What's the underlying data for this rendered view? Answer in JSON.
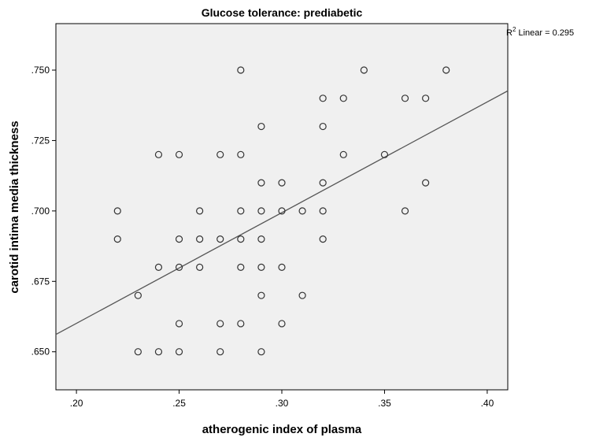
{
  "chart_data": {
    "type": "scatter",
    "title": "Glucose tolerance: prediabetic",
    "xlabel": "atherogenic index of plasma",
    "ylabel": "carotid intima media thickness",
    "xlim": [
      0.19,
      0.41
    ],
    "ylim": [
      0.6365,
      0.7665
    ],
    "x_ticks": [
      0.2,
      0.25,
      0.3,
      0.35,
      0.4
    ],
    "x_tick_labels": [
      ".20",
      ".25",
      ".30",
      ".35",
      ".40"
    ],
    "y_ticks": [
      0.65,
      0.675,
      0.7,
      0.725,
      0.75
    ],
    "y_tick_labels": [
      ".650",
      ".675",
      ".700",
      ".725",
      ".750"
    ],
    "grid": false,
    "background": "#f0f0f0",
    "marker_color": "#333333",
    "fit_line_color": "#555555",
    "fit_line": {
      "label_prefix": "R",
      "label_sup": "2",
      "label_text": " Linear = 0.295",
      "slope": 0.393,
      "intercept": 0.5815
    },
    "points": [
      {
        "x": 0.22,
        "y": 0.7
      },
      {
        "x": 0.22,
        "y": 0.69
      },
      {
        "x": 0.23,
        "y": 0.67
      },
      {
        "x": 0.23,
        "y": 0.65
      },
      {
        "x": 0.24,
        "y": 0.72
      },
      {
        "x": 0.24,
        "y": 0.68
      },
      {
        "x": 0.24,
        "y": 0.65
      },
      {
        "x": 0.25,
        "y": 0.72
      },
      {
        "x": 0.25,
        "y": 0.69
      },
      {
        "x": 0.25,
        "y": 0.68
      },
      {
        "x": 0.25,
        "y": 0.66
      },
      {
        "x": 0.25,
        "y": 0.65
      },
      {
        "x": 0.26,
        "y": 0.7
      },
      {
        "x": 0.26,
        "y": 0.69
      },
      {
        "x": 0.26,
        "y": 0.68
      },
      {
        "x": 0.27,
        "y": 0.72
      },
      {
        "x": 0.27,
        "y": 0.69
      },
      {
        "x": 0.27,
        "y": 0.66
      },
      {
        "x": 0.27,
        "y": 0.65
      },
      {
        "x": 0.28,
        "y": 0.75
      },
      {
        "x": 0.28,
        "y": 0.72
      },
      {
        "x": 0.28,
        "y": 0.7
      },
      {
        "x": 0.28,
        "y": 0.69
      },
      {
        "x": 0.28,
        "y": 0.68
      },
      {
        "x": 0.28,
        "y": 0.66
      },
      {
        "x": 0.29,
        "y": 0.73
      },
      {
        "x": 0.29,
        "y": 0.71
      },
      {
        "x": 0.29,
        "y": 0.7
      },
      {
        "x": 0.29,
        "y": 0.69
      },
      {
        "x": 0.29,
        "y": 0.68
      },
      {
        "x": 0.29,
        "y": 0.67
      },
      {
        "x": 0.29,
        "y": 0.65
      },
      {
        "x": 0.3,
        "y": 0.71
      },
      {
        "x": 0.3,
        "y": 0.7
      },
      {
        "x": 0.3,
        "y": 0.68
      },
      {
        "x": 0.3,
        "y": 0.66
      },
      {
        "x": 0.31,
        "y": 0.7
      },
      {
        "x": 0.31,
        "y": 0.67
      },
      {
        "x": 0.32,
        "y": 0.74
      },
      {
        "x": 0.32,
        "y": 0.73
      },
      {
        "x": 0.32,
        "y": 0.71
      },
      {
        "x": 0.32,
        "y": 0.7
      },
      {
        "x": 0.32,
        "y": 0.69
      },
      {
        "x": 0.33,
        "y": 0.74
      },
      {
        "x": 0.33,
        "y": 0.72
      },
      {
        "x": 0.34,
        "y": 0.75
      },
      {
        "x": 0.35,
        "y": 0.72
      },
      {
        "x": 0.36,
        "y": 0.74
      },
      {
        "x": 0.36,
        "y": 0.7
      },
      {
        "x": 0.37,
        "y": 0.74
      },
      {
        "x": 0.37,
        "y": 0.71
      },
      {
        "x": 0.38,
        "y": 0.75
      }
    ]
  }
}
